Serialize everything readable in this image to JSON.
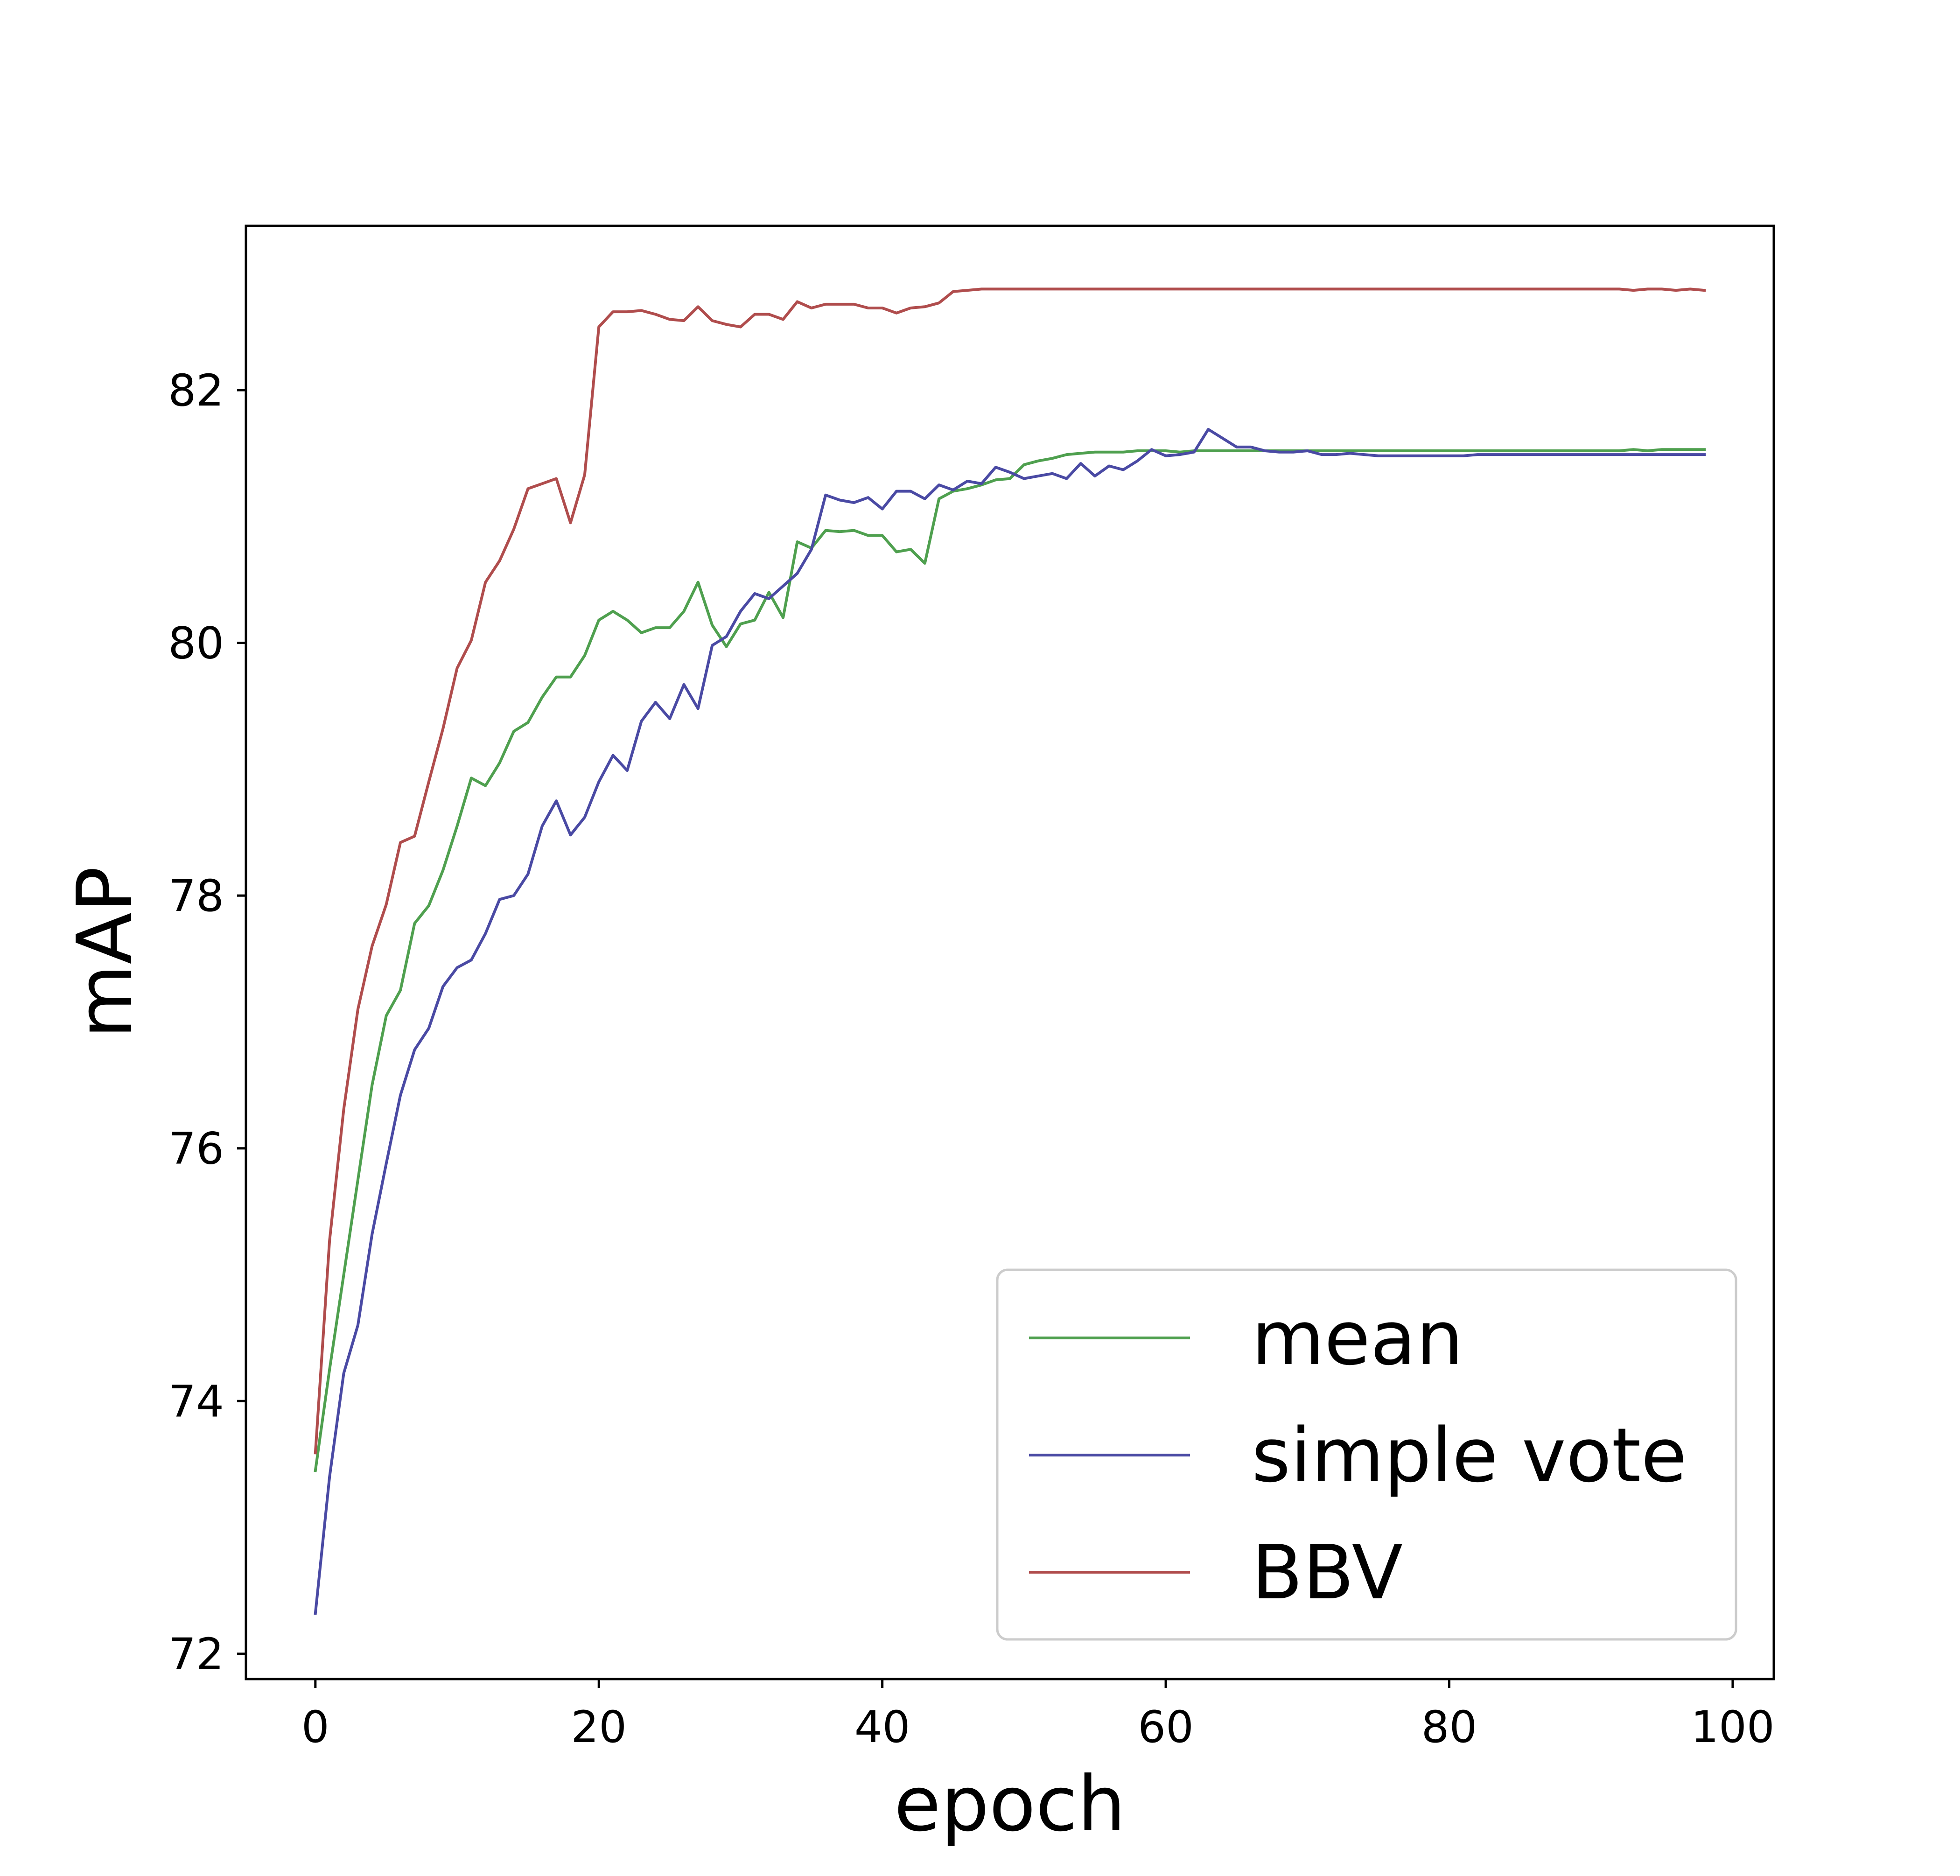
{
  "chart_data": {
    "type": "line",
    "title": "",
    "xlabel": "epoch",
    "ylabel": "mAP",
    "xlim": [
      -4.9,
      102.9
    ],
    "ylim": [
      71.8,
      83.3
    ],
    "xticks": [
      "0",
      "20",
      "40",
      "60",
      "80",
      "100"
    ],
    "yticks": [
      "72",
      "74",
      "76",
      "78",
      "80",
      "82"
    ],
    "grid": false,
    "legend_position": "lower-right",
    "series": [
      {
        "name": "mean",
        "color": "#4fa04f",
        "x": [
          0,
          1,
          2,
          3,
          4,
          5,
          6,
          7,
          8,
          9,
          10,
          11,
          12,
          13,
          14,
          15,
          16,
          17,
          18,
          19,
          20,
          21,
          22,
          23,
          24,
          25,
          26,
          27,
          28,
          29,
          30,
          31,
          32,
          33,
          34,
          35,
          36,
          37,
          38,
          39,
          40,
          41,
          42,
          43,
          44,
          45,
          46,
          47,
          48,
          49,
          50,
          51,
          52,
          53,
          54,
          55,
          56,
          57,
          58,
          59,
          60,
          61,
          62,
          63,
          64,
          65,
          66,
          67,
          68,
          69,
          70,
          71,
          72,
          73,
          74,
          75,
          76,
          77,
          78,
          79,
          80,
          81,
          82,
          83,
          84,
          85,
          86,
          87,
          88,
          89,
          90,
          91,
          92,
          93,
          94,
          95,
          96,
          97,
          98
        ],
        "y": [
          73.45,
          74.25,
          75.0,
          75.75,
          76.5,
          77.05,
          77.25,
          77.78,
          77.92,
          78.2,
          78.55,
          78.93,
          78.87,
          79.05,
          79.3,
          79.37,
          79.57,
          79.73,
          79.73,
          79.9,
          80.18,
          80.25,
          80.18,
          80.08,
          80.12,
          80.12,
          80.25,
          80.48,
          80.14,
          79.97,
          80.15,
          80.18,
          80.4,
          80.2,
          80.8,
          80.75,
          80.89,
          80.88,
          80.89,
          80.85,
          80.85,
          80.72,
          80.74,
          80.63,
          81.14,
          81.2,
          81.22,
          81.25,
          81.29,
          81.3,
          81.41,
          81.44,
          81.46,
          81.49,
          81.5,
          81.51,
          81.51,
          81.51,
          81.52,
          81.52,
          81.52,
          81.51,
          81.52,
          81.52,
          81.52,
          81.52,
          81.52,
          81.52,
          81.52,
          81.52,
          81.52,
          81.52,
          81.52,
          81.52,
          81.52,
          81.52,
          81.52,
          81.52,
          81.52,
          81.52,
          81.52,
          81.52,
          81.52,
          81.52,
          81.52,
          81.52,
          81.52,
          81.52,
          81.52,
          81.52,
          81.52,
          81.52,
          81.52,
          81.53,
          81.52,
          81.53,
          81.53,
          81.53,
          81.53
        ]
      },
      {
        "name": "simple vote",
        "color": "#4a4aa4",
        "x": [
          0,
          1,
          2,
          3,
          4,
          5,
          6,
          7,
          8,
          9,
          10,
          11,
          12,
          13,
          14,
          15,
          16,
          17,
          18,
          19,
          20,
          21,
          22,
          23,
          24,
          25,
          26,
          27,
          28,
          29,
          30,
          31,
          32,
          33,
          34,
          35,
          36,
          37,
          38,
          39,
          40,
          41,
          42,
          43,
          44,
          45,
          46,
          47,
          48,
          49,
          50,
          51,
          52,
          53,
          54,
          55,
          56,
          57,
          58,
          59,
          60,
          61,
          62,
          63,
          64,
          65,
          66,
          67,
          68,
          69,
          70,
          71,
          72,
          73,
          74,
          75,
          76,
          77,
          78,
          79,
          80,
          81,
          82,
          83,
          84,
          85,
          86,
          87,
          88,
          89,
          90,
          91,
          92,
          93,
          94,
          95,
          96,
          97,
          98
        ],
        "y": [
          72.32,
          73.4,
          74.22,
          74.6,
          75.32,
          75.88,
          76.42,
          76.78,
          76.95,
          77.28,
          77.43,
          77.49,
          77.7,
          77.97,
          78.0,
          78.17,
          78.55,
          78.75,
          78.48,
          78.62,
          78.9,
          79.11,
          78.99,
          79.38,
          79.53,
          79.4,
          79.67,
          79.48,
          79.98,
          80.05,
          80.25,
          80.39,
          80.35,
          80.45,
          80.55,
          80.74,
          81.17,
          81.13,
          81.11,
          81.15,
          81.06,
          81.2,
          81.2,
          81.14,
          81.25,
          81.21,
          81.28,
          81.26,
          81.39,
          81.35,
          81.3,
          81.32,
          81.34,
          81.3,
          81.42,
          81.32,
          81.4,
          81.37,
          81.44,
          81.53,
          81.48,
          81.49,
          81.51,
          81.69,
          81.62,
          81.55,
          81.55,
          81.52,
          81.51,
          81.51,
          81.52,
          81.49,
          81.49,
          81.5,
          81.49,
          81.48,
          81.48,
          81.48,
          81.48,
          81.48,
          81.48,
          81.48,
          81.49,
          81.49,
          81.49,
          81.49,
          81.49,
          81.49,
          81.49,
          81.49,
          81.49,
          81.49,
          81.49,
          81.49,
          81.49,
          81.49,
          81.49,
          81.49,
          81.49
        ]
      },
      {
        "name": "BBV",
        "color": "#b04d4d",
        "x": [
          0,
          1,
          2,
          3,
          4,
          5,
          6,
          7,
          8,
          9,
          10,
          11,
          12,
          13,
          14,
          15,
          16,
          17,
          18,
          19,
          20,
          21,
          22,
          23,
          24,
          25,
          26,
          27,
          28,
          29,
          30,
          31,
          32,
          33,
          34,
          35,
          36,
          37,
          38,
          39,
          40,
          41,
          42,
          43,
          44,
          45,
          46,
          47,
          48,
          49,
          50,
          51,
          52,
          53,
          54,
          55,
          56,
          57,
          58,
          59,
          60,
          61,
          62,
          63,
          64,
          65,
          66,
          67,
          68,
          69,
          70,
          71,
          72,
          73,
          74,
          75,
          76,
          77,
          78,
          79,
          80,
          81,
          82,
          83,
          84,
          85,
          86,
          87,
          88,
          89,
          90,
          91,
          92,
          93,
          94,
          95,
          96,
          97,
          98
        ],
        "y": [
          73.59,
          75.27,
          76.31,
          77.1,
          77.6,
          77.93,
          78.42,
          78.47,
          78.9,
          79.32,
          79.8,
          80.02,
          80.48,
          80.65,
          80.9,
          81.22,
          81.26,
          81.3,
          80.95,
          81.33,
          82.5,
          82.62,
          82.62,
          82.63,
          82.6,
          82.56,
          82.55,
          82.66,
          82.55,
          82.52,
          82.5,
          82.6,
          82.6,
          82.56,
          82.7,
          82.65,
          82.68,
          82.68,
          82.68,
          82.65,
          82.65,
          82.61,
          82.65,
          82.66,
          82.69,
          82.78,
          82.79,
          82.8,
          82.8,
          82.8,
          82.8,
          82.8,
          82.8,
          82.8,
          82.8,
          82.8,
          82.8,
          82.8,
          82.8,
          82.8,
          82.8,
          82.8,
          82.8,
          82.8,
          82.8,
          82.8,
          82.8,
          82.8,
          82.8,
          82.8,
          82.8,
          82.8,
          82.8,
          82.8,
          82.8,
          82.8,
          82.8,
          82.8,
          82.8,
          82.8,
          82.8,
          82.8,
          82.8,
          82.8,
          82.8,
          82.8,
          82.8,
          82.8,
          82.8,
          82.8,
          82.8,
          82.8,
          82.8,
          82.79,
          82.8,
          82.8,
          82.79,
          82.8,
          82.79
        ]
      }
    ]
  }
}
